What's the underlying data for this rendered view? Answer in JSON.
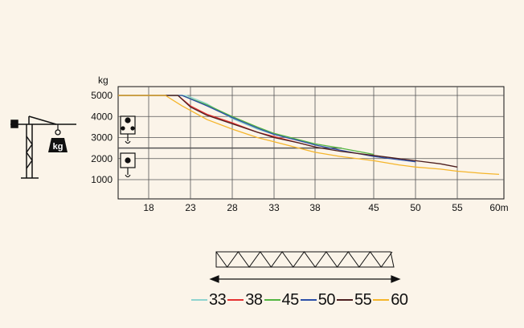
{
  "chart_data": {
    "type": "line",
    "y_unit": "kg",
    "x_unit": "m",
    "x_ticks": [
      18,
      23,
      28,
      33,
      38,
      45,
      50,
      55,
      60
    ],
    "x_tick_labels": [
      "18",
      "23",
      "28",
      "33",
      "38",
      "45",
      "50",
      "55",
      "60m"
    ],
    "y_ticks": [
      1000,
      2000,
      3000,
      4000,
      5000
    ],
    "xlim": [
      13,
      60
    ],
    "ylim": [
      0,
      5000
    ],
    "grid": true,
    "reference_line": {
      "y": 2500,
      "color": "#555555"
    },
    "hook_badge_text": "kg",
    "series": [
      {
        "name": "33",
        "color": "#8fd3cf",
        "points": [
          [
            13,
            5000
          ],
          [
            22.5,
            5000
          ],
          [
            25,
            4600
          ],
          [
            28,
            3900
          ],
          [
            31,
            3400
          ],
          [
            33,
            3150
          ]
        ]
      },
      {
        "name": "38",
        "color": "#e53030",
        "points": [
          [
            13,
            5000
          ],
          [
            21.5,
            5000
          ],
          [
            23,
            4500
          ],
          [
            25,
            4100
          ],
          [
            28,
            3700
          ],
          [
            31,
            3250
          ],
          [
            33,
            3050
          ],
          [
            36,
            2750
          ],
          [
            38,
            2550
          ]
        ]
      },
      {
        "name": "45",
        "color": "#52b540",
        "points": [
          [
            13,
            5000
          ],
          [
            22,
            5000
          ],
          [
            25,
            4550
          ],
          [
            28,
            4000
          ],
          [
            31,
            3500
          ],
          [
            33,
            3200
          ],
          [
            36,
            2900
          ],
          [
            38,
            2700
          ],
          [
            41,
            2500
          ],
          [
            45,
            2200
          ]
        ]
      },
      {
        "name": "50",
        "color": "#2b4fa8",
        "points": [
          [
            13,
            5000
          ],
          [
            22,
            5000
          ],
          [
            25,
            4500
          ],
          [
            28,
            3950
          ],
          [
            31,
            3450
          ],
          [
            33,
            3150
          ],
          [
            36,
            2850
          ],
          [
            38,
            2650
          ],
          [
            41,
            2400
          ],
          [
            45,
            2100
          ],
          [
            48,
            1950
          ],
          [
            50,
            1850
          ]
        ]
      },
      {
        "name": "55",
        "color": "#4d1f1f",
        "points": [
          [
            13,
            5000
          ],
          [
            21.5,
            5000
          ],
          [
            23,
            4450
          ],
          [
            25,
            4050
          ],
          [
            28,
            3650
          ],
          [
            31,
            3250
          ],
          [
            33,
            3000
          ],
          [
            36,
            2750
          ],
          [
            38,
            2550
          ],
          [
            41,
            2350
          ],
          [
            45,
            2150
          ],
          [
            48,
            2000
          ],
          [
            50,
            1900
          ],
          [
            53,
            1750
          ],
          [
            55,
            1600
          ]
        ]
      },
      {
        "name": "60",
        "color": "#f5b52a",
        "points": [
          [
            13,
            5000
          ],
          [
            20,
            5000
          ],
          [
            22,
            4500
          ],
          [
            25,
            3850
          ],
          [
            28,
            3400
          ],
          [
            31,
            3000
          ],
          [
            33,
            2800
          ],
          [
            36,
            2500
          ],
          [
            38,
            2300
          ],
          [
            41,
            2100
          ],
          [
            45,
            1900
          ],
          [
            48,
            1700
          ],
          [
            50,
            1600
          ],
          [
            53,
            1500
          ],
          [
            55,
            1400
          ],
          [
            58,
            1300
          ],
          [
            60,
            1250
          ]
        ]
      }
    ]
  },
  "legend": [
    {
      "label": "33",
      "color": "#8fd3cf"
    },
    {
      "label": "38",
      "color": "#e53030"
    },
    {
      "label": "45",
      "color": "#52b540"
    },
    {
      "label": "50",
      "color": "#2b4fa8"
    },
    {
      "label": "55",
      "color": "#4d1f1f"
    },
    {
      "label": "60",
      "color": "#f5b52a"
    }
  ],
  "icons": [
    "tower-crane-icon",
    "hook-block-double-icon",
    "hook-block-single-icon",
    "lattice-jib-icon",
    "double-arrow-icon"
  ]
}
